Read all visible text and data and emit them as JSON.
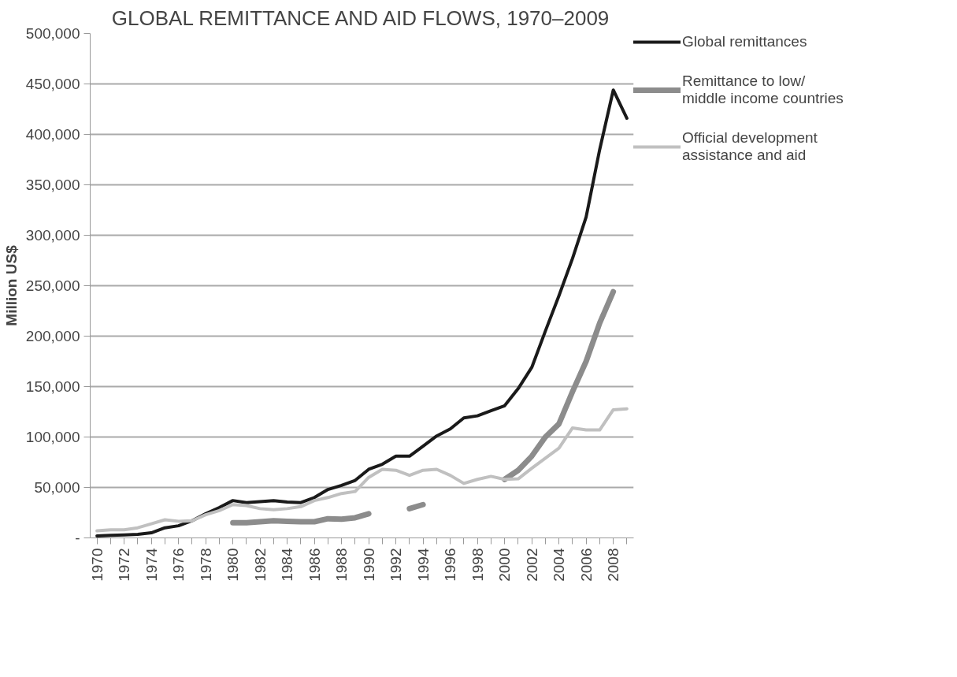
{
  "chart_data": {
    "type": "line",
    "title": "GLOBAL REMITTANCE AND AID FLOWS, 1970–2009",
    "ylabel": "Million US$",
    "x": [
      1970,
      1971,
      1972,
      1973,
      1974,
      1975,
      1976,
      1977,
      1978,
      1979,
      1980,
      1981,
      1982,
      1983,
      1984,
      1985,
      1986,
      1987,
      1988,
      1989,
      1990,
      1991,
      1992,
      1993,
      1994,
      1995,
      1996,
      1997,
      1998,
      1999,
      2000,
      2001,
      2002,
      2003,
      2004,
      2005,
      2006,
      2007,
      2008,
      2009
    ],
    "series": [
      {
        "name": "Global remittances",
        "color": "#1a1a1a",
        "values": [
          2000,
          2500,
          3000,
          3500,
          5000,
          10000,
          12000,
          17000,
          24000,
          30000,
          37000,
          35000,
          36000,
          37000,
          35500,
          35000,
          40000,
          48000,
          52000,
          57000,
          68000,
          73000,
          81000,
          81000,
          91000,
          101000,
          108000,
          119000,
          121000,
          126000,
          131000,
          148000,
          169000,
          205000,
          240000,
          277000,
          318000,
          385000,
          444000,
          416000
        ]
      },
      {
        "name": "Remittance to low/ middle income countries",
        "color": "#8c8c8c",
        "values": [
          null,
          null,
          null,
          null,
          null,
          null,
          null,
          null,
          null,
          null,
          15000,
          15000,
          16000,
          17000,
          16500,
          16000,
          16000,
          19000,
          18500,
          20000,
          24000,
          null,
          null,
          29000,
          33000,
          null,
          null,
          null,
          null,
          null,
          58000,
          67000,
          81000,
          100000,
          113000,
          145000,
          175000,
          213000,
          244000,
          null
        ]
      },
      {
        "name": "Official development assistance and aid",
        "color": "#c0c0c0",
        "values": [
          7000,
          8000,
          8000,
          10000,
          14000,
          18000,
          16500,
          17000,
          23000,
          27000,
          33000,
          32000,
          29000,
          28000,
          29000,
          31000,
          37000,
          40000,
          44000,
          46000,
          60000,
          68000,
          67000,
          62000,
          67000,
          68000,
          62000,
          54000,
          58000,
          61000,
          58000,
          58500,
          69000,
          79000,
          89000,
          109000,
          107000,
          107000,
          127000,
          128000
        ]
      }
    ],
    "xlim": [
      1969.5,
      2009.5
    ],
    "xticks": [
      1970,
      {
        "value": 1971,
        "label": null
      },
      1972,
      {
        "value": 1973,
        "label": null
      },
      1974,
      {
        "value": 1975,
        "label": null
      },
      1976,
      {
        "value": 1977,
        "label": null
      },
      1978,
      {
        "value": 1979,
        "label": null
      },
      1980,
      {
        "value": 1981,
        "label": null
      },
      1982,
      {
        "value": 1983,
        "label": null
      },
      1984,
      {
        "value": 1985,
        "label": null
      },
      1986,
      {
        "value": 1987,
        "label": null
      },
      1988,
      {
        "value": 1989,
        "label": null
      },
      1990,
      {
        "value": 1991,
        "label": null
      },
      1992,
      {
        "value": 1993,
        "label": null
      },
      1994,
      {
        "value": 1995,
        "label": null
      },
      1996,
      {
        "value": 1997,
        "label": null
      },
      1998,
      {
        "value": 1999,
        "label": null
      },
      2000,
      {
        "value": 2001,
        "label": null
      },
      2002,
      {
        "value": 2003,
        "label": null
      },
      2004,
      {
        "value": 2005,
        "label": null
      },
      2006,
      {
        "value": 2007,
        "label": null
      },
      2008,
      {
        "value": 2009,
        "label": null
      }
    ],
    "ylim": [
      0,
      500000
    ],
    "yticks": [
      {
        "value": 0,
        "label": "-"
      },
      {
        "value": 50000,
        "label": "50,000"
      },
      {
        "value": 100000,
        "label": "100,000"
      },
      {
        "value": 150000,
        "label": "150,000"
      },
      {
        "value": 200000,
        "label": "200,000"
      },
      {
        "value": 250000,
        "label": "250,000"
      },
      {
        "value": 300000,
        "label": "300,000"
      },
      {
        "value": 350000,
        "label": "350,000"
      },
      {
        "value": 400000,
        "label": "400,000"
      },
      {
        "value": 450000,
        "label": "450,000"
      },
      {
        "value": 500000,
        "label": "500,000"
      }
    ],
    "grid": "y",
    "legend": "right",
    "marker": "none",
    "line_style": "solid"
  }
}
